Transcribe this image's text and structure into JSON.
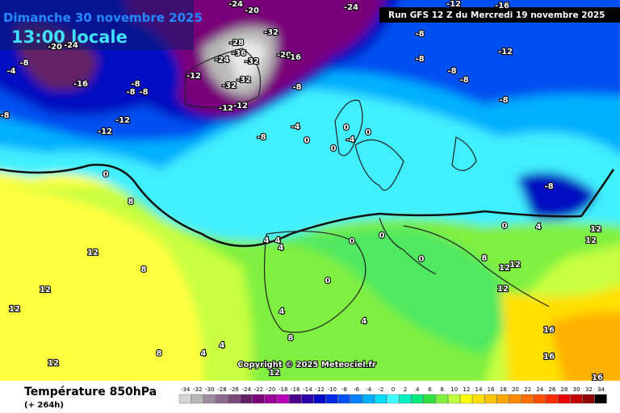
{
  "header": {
    "date": "Dimanche 30 novembre 2025",
    "time": "13:00 locale",
    "run": "Run GFS 12 Z du Mercredi 19 novembre 2025"
  },
  "copyright": "Copyright © 2025 Meteociel.fr",
  "footer": {
    "title": "Température 850hPa",
    "lead": "(+ 264h)"
  },
  "legend": {
    "labels": [
      -34,
      -32,
      -30,
      -28,
      -26,
      -24,
      -22,
      -20,
      -18,
      -16,
      -14,
      -12,
      -10,
      -8,
      -6,
      -4,
      -2,
      0,
      2,
      4,
      6,
      8,
      10,
      12,
      14,
      16,
      18,
      20,
      22,
      24,
      26,
      28,
      30,
      32,
      34
    ],
    "colors": [
      "#d4d4d4",
      "#b8b8b8",
      "#a08ca0",
      "#8c6a8c",
      "#784878",
      "#642064",
      "#7a007a",
      "#9a009a",
      "#b800b8",
      "#4a008c",
      "#2a00a8",
      "#0008c8",
      "#0028e6",
      "#0050f4",
      "#0080ff",
      "#00b0ff",
      "#00dcff",
      "#40ffff",
      "#00f0c0",
      "#00e880",
      "#30e040",
      "#80f040",
      "#c0ff40",
      "#ffff00",
      "#ffe000",
      "#ffc400",
      "#ffa800",
      "#ff8c00",
      "#ff6e00",
      "#ff5000",
      "#ff2c00",
      "#e80000",
      "#c00000",
      "#900000",
      "#000000"
    ]
  },
  "contour_labels": [
    "-20",
    "-24",
    "-4",
    "-8",
    "-16",
    "-8",
    "-8",
    "-8",
    "-12",
    "-12",
    "-12",
    "-8",
    "-28",
    "-32",
    "-24",
    "-36",
    "-32",
    "-20",
    "-16",
    "-32",
    "-32",
    "-12",
    "-12",
    "-8",
    "-4",
    "-8",
    "0",
    "0",
    "0",
    "0",
    "-4",
    "0",
    "8",
    "12",
    "12",
    "12",
    "8",
    "4",
    "4",
    "4",
    "0",
    "0",
    "0",
    "-8",
    "-12",
    "-8",
    "-8",
    "-8",
    "-8",
    "-8",
    "0",
    "4",
    "12",
    "12",
    "8",
    "12",
    "12",
    "12",
    "16",
    "16",
    "16",
    "4",
    "8",
    "4",
    "4",
    "8",
    "12",
    "12",
    "0",
    "4",
    "-24",
    "-20",
    "-24",
    "-12",
    "-16"
  ]
}
